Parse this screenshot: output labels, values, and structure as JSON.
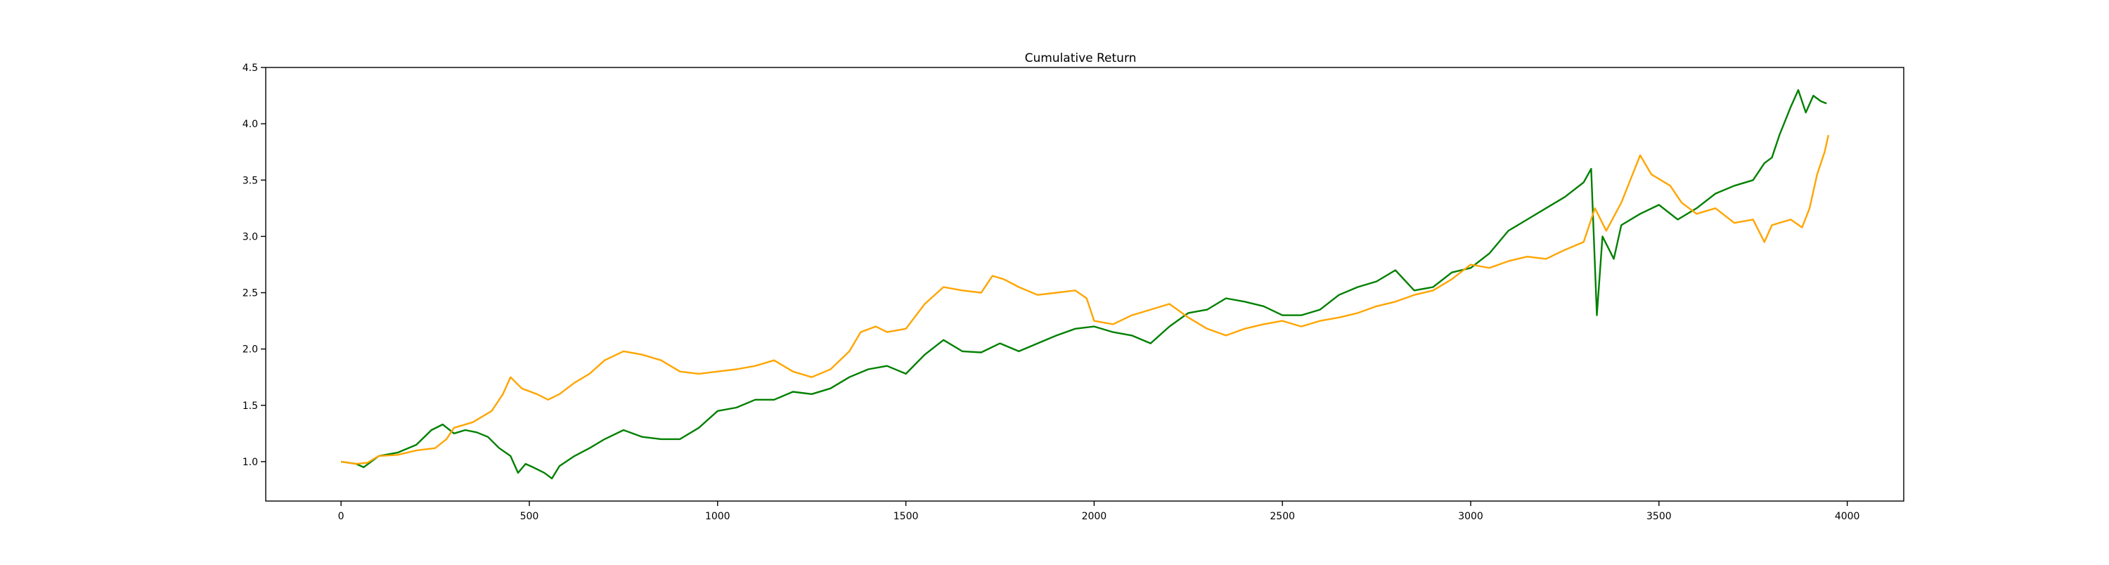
{
  "chart_data": {
    "type": "line",
    "title": "Cumulative Return",
    "xlabel": "",
    "ylabel": "",
    "xlim": [
      -200,
      4150
    ],
    "ylim": [
      0.65,
      4.5
    ],
    "xticks": [
      0,
      500,
      1000,
      1500,
      2000,
      2500,
      3000,
      3500,
      4000
    ],
    "yticks": [
      1.0,
      1.5,
      2.0,
      2.5,
      3.0,
      3.5,
      4.0,
      4.5
    ],
    "grid": false,
    "legend": "none",
    "series": [
      {
        "color": "#008000",
        "points": [
          [
            0,
            1.0
          ],
          [
            40,
            0.98
          ],
          [
            60,
            0.95
          ],
          [
            80,
            1.0
          ],
          [
            100,
            1.05
          ],
          [
            150,
            1.08
          ],
          [
            200,
            1.15
          ],
          [
            240,
            1.28
          ],
          [
            270,
            1.33
          ],
          [
            300,
            1.25
          ],
          [
            330,
            1.28
          ],
          [
            360,
            1.26
          ],
          [
            390,
            1.22
          ],
          [
            420,
            1.12
          ],
          [
            450,
            1.05
          ],
          [
            470,
            0.9
          ],
          [
            490,
            0.98
          ],
          [
            510,
            0.95
          ],
          [
            540,
            0.9
          ],
          [
            560,
            0.85
          ],
          [
            580,
            0.96
          ],
          [
            620,
            1.05
          ],
          [
            660,
            1.12
          ],
          [
            700,
            1.2
          ],
          [
            750,
            1.28
          ],
          [
            800,
            1.22
          ],
          [
            850,
            1.2
          ],
          [
            900,
            1.2
          ],
          [
            950,
            1.3
          ],
          [
            1000,
            1.45
          ],
          [
            1050,
            1.48
          ],
          [
            1100,
            1.55
          ],
          [
            1150,
            1.55
          ],
          [
            1200,
            1.62
          ],
          [
            1250,
            1.6
          ],
          [
            1300,
            1.65
          ],
          [
            1350,
            1.75
          ],
          [
            1400,
            1.82
          ],
          [
            1450,
            1.85
          ],
          [
            1500,
            1.78
          ],
          [
            1550,
            1.95
          ],
          [
            1600,
            2.08
          ],
          [
            1650,
            1.98
          ],
          [
            1700,
            1.97
          ],
          [
            1750,
            2.05
          ],
          [
            1800,
            1.98
          ],
          [
            1850,
            2.05
          ],
          [
            1900,
            2.12
          ],
          [
            1950,
            2.18
          ],
          [
            2000,
            2.2
          ],
          [
            2050,
            2.15
          ],
          [
            2100,
            2.12
          ],
          [
            2150,
            2.05
          ],
          [
            2200,
            2.2
          ],
          [
            2250,
            2.32
          ],
          [
            2300,
            2.35
          ],
          [
            2350,
            2.45
          ],
          [
            2400,
            2.42
          ],
          [
            2450,
            2.38
          ],
          [
            2500,
            2.3
          ],
          [
            2550,
            2.3
          ],
          [
            2600,
            2.35
          ],
          [
            2650,
            2.48
          ],
          [
            2700,
            2.55
          ],
          [
            2750,
            2.6
          ],
          [
            2800,
            2.7
          ],
          [
            2850,
            2.52
          ],
          [
            2900,
            2.55
          ],
          [
            2950,
            2.68
          ],
          [
            3000,
            2.72
          ],
          [
            3050,
            2.85
          ],
          [
            3100,
            3.05
          ],
          [
            3150,
            3.15
          ],
          [
            3200,
            3.25
          ],
          [
            3250,
            3.35
          ],
          [
            3300,
            3.48
          ],
          [
            3320,
            3.6
          ],
          [
            3335,
            2.3
          ],
          [
            3350,
            3.0
          ],
          [
            3380,
            2.8
          ],
          [
            3400,
            3.1
          ],
          [
            3450,
            3.2
          ],
          [
            3500,
            3.28
          ],
          [
            3550,
            3.15
          ],
          [
            3600,
            3.25
          ],
          [
            3650,
            3.38
          ],
          [
            3700,
            3.45
          ],
          [
            3750,
            3.5
          ],
          [
            3780,
            3.65
          ],
          [
            3800,
            3.7
          ],
          [
            3820,
            3.9
          ],
          [
            3850,
            4.15
          ],
          [
            3870,
            4.3
          ],
          [
            3890,
            4.1
          ],
          [
            3910,
            4.25
          ],
          [
            3930,
            4.2
          ],
          [
            3945,
            4.18
          ]
        ]
      },
      {
        "color": "#ffa500",
        "points": [
          [
            0,
            1.0
          ],
          [
            40,
            0.98
          ],
          [
            70,
            0.99
          ],
          [
            100,
            1.05
          ],
          [
            150,
            1.06
          ],
          [
            200,
            1.1
          ],
          [
            250,
            1.12
          ],
          [
            280,
            1.2
          ],
          [
            300,
            1.3
          ],
          [
            350,
            1.35
          ],
          [
            400,
            1.45
          ],
          [
            430,
            1.6
          ],
          [
            450,
            1.75
          ],
          [
            480,
            1.65
          ],
          [
            520,
            1.6
          ],
          [
            550,
            1.55
          ],
          [
            580,
            1.6
          ],
          [
            620,
            1.7
          ],
          [
            660,
            1.78
          ],
          [
            700,
            1.9
          ],
          [
            750,
            1.98
          ],
          [
            800,
            1.95
          ],
          [
            850,
            1.9
          ],
          [
            900,
            1.8
          ],
          [
            950,
            1.78
          ],
          [
            1000,
            1.8
          ],
          [
            1050,
            1.82
          ],
          [
            1100,
            1.85
          ],
          [
            1150,
            1.9
          ],
          [
            1200,
            1.8
          ],
          [
            1250,
            1.75
          ],
          [
            1300,
            1.82
          ],
          [
            1350,
            1.98
          ],
          [
            1380,
            2.15
          ],
          [
            1420,
            2.2
          ],
          [
            1450,
            2.15
          ],
          [
            1500,
            2.18
          ],
          [
            1550,
            2.4
          ],
          [
            1600,
            2.55
          ],
          [
            1650,
            2.52
          ],
          [
            1700,
            2.5
          ],
          [
            1730,
            2.65
          ],
          [
            1760,
            2.62
          ],
          [
            1800,
            2.55
          ],
          [
            1850,
            2.48
          ],
          [
            1900,
            2.5
          ],
          [
            1950,
            2.52
          ],
          [
            1980,
            2.45
          ],
          [
            2000,
            2.25
          ],
          [
            2050,
            2.22
          ],
          [
            2100,
            2.3
          ],
          [
            2150,
            2.35
          ],
          [
            2200,
            2.4
          ],
          [
            2250,
            2.28
          ],
          [
            2300,
            2.18
          ],
          [
            2350,
            2.12
          ],
          [
            2400,
            2.18
          ],
          [
            2450,
            2.22
          ],
          [
            2500,
            2.25
          ],
          [
            2550,
            2.2
          ],
          [
            2600,
            2.25
          ],
          [
            2650,
            2.28
          ],
          [
            2700,
            2.32
          ],
          [
            2750,
            2.38
          ],
          [
            2800,
            2.42
          ],
          [
            2850,
            2.48
          ],
          [
            2900,
            2.52
          ],
          [
            2950,
            2.62
          ],
          [
            3000,
            2.75
          ],
          [
            3050,
            2.72
          ],
          [
            3100,
            2.78
          ],
          [
            3150,
            2.82
          ],
          [
            3200,
            2.8
          ],
          [
            3250,
            2.88
          ],
          [
            3300,
            2.95
          ],
          [
            3330,
            3.25
          ],
          [
            3360,
            3.05
          ],
          [
            3400,
            3.3
          ],
          [
            3450,
            3.72
          ],
          [
            3480,
            3.55
          ],
          [
            3530,
            3.45
          ],
          [
            3560,
            3.3
          ],
          [
            3600,
            3.2
          ],
          [
            3650,
            3.25
          ],
          [
            3700,
            3.12
          ],
          [
            3750,
            3.15
          ],
          [
            3780,
            2.95
          ],
          [
            3800,
            3.1
          ],
          [
            3850,
            3.15
          ],
          [
            3880,
            3.08
          ],
          [
            3900,
            3.25
          ],
          [
            3920,
            3.55
          ],
          [
            3940,
            3.75
          ],
          [
            3950,
            3.9
          ]
        ]
      }
    ]
  }
}
